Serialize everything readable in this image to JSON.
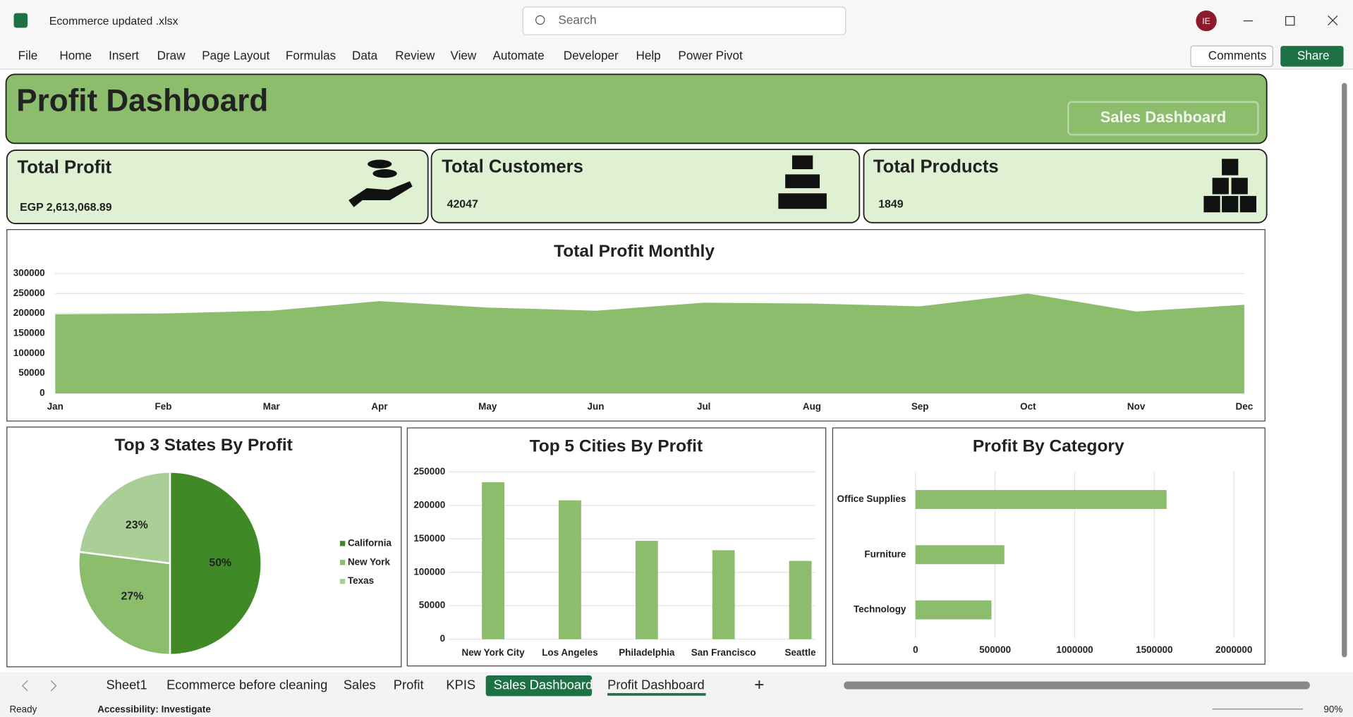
{
  "ui": {
    "file_name": "Ecommerce updated .xlsx",
    "search": "Search",
    "avatar": "IE",
    "menu": [
      "File",
      "Home",
      "Insert",
      "Draw",
      "Page Layout",
      "Formulas",
      "Data",
      "Review",
      "View",
      "Automate",
      "Developer",
      "Help",
      "Power Pivot"
    ],
    "comments": "Comments",
    "share": "Share",
    "tabs": [
      "Sheet1",
      "Ecommerce before cleaning",
      "Sales",
      "Profit",
      "KPIS",
      "Sales Dashboard",
      "Profit Dashboard"
    ],
    "status": "Ready",
    "accessibility": "Accessibility: Investigate",
    "zoom": "90%"
  },
  "dashboard": {
    "title": "Profit Dashboard",
    "button": "Sales Dashboard",
    "cards": [
      {
        "title": "Total Profit",
        "value": "EGP 2,613,068.89"
      },
      {
        "title": "Total Customers",
        "value": "42047"
      },
      {
        "title": "Total Products",
        "value": "1849"
      }
    ]
  },
  "chart_data": [
    {
      "type": "area",
      "title": "Total Profit Monthly",
      "categories": [
        "Jan",
        "Feb",
        "Mar",
        "Apr",
        "May",
        "Jun",
        "Jul",
        "Aug",
        "Sep",
        "Oct",
        "Nov",
        "Dec"
      ],
      "values": [
        198000,
        200000,
        207000,
        231000,
        215000,
        207000,
        227000,
        225000,
        218000,
        250000,
        205000,
        222000
      ],
      "color": "#8cbd6c",
      "ylim": [
        0,
        300000
      ],
      "yticks": [
        0,
        50000,
        100000,
        150000,
        200000,
        250000,
        300000
      ],
      "grid": true
    },
    {
      "type": "pie",
      "title": "Top 3 States By Profit",
      "categories": [
        "California",
        "New York",
        "Texas"
      ],
      "values": [
        50,
        27,
        23
      ],
      "value_labels": [
        "50%",
        "27%",
        "23%"
      ],
      "colors": [
        "#3f8a26",
        "#8cbd6c",
        "#a9cf97"
      ],
      "legend": "right"
    },
    {
      "type": "bar",
      "title": "Top 5 Cities By Profit",
      "categories": [
        "New York City",
        "Los Angeles",
        "Philadelphia",
        "San Francisco",
        "Seattle"
      ],
      "values": [
        234500,
        207500,
        147000,
        133000,
        117000
      ],
      "color": "#8cbd6c",
      "ylim": [
        0,
        250000
      ],
      "yticks": [
        0,
        50000,
        100000,
        150000,
        200000,
        250000
      ],
      "grid": true
    },
    {
      "type": "barh",
      "title": "Profit By Category",
      "categories": [
        "Office Supplies",
        "Furniture",
        "Technology"
      ],
      "values": [
        1577000,
        558000,
        477000
      ],
      "color": "#8cbd6c",
      "xlim": [
        0,
        2000000
      ],
      "xticks": [
        0,
        500000,
        1000000,
        1500000,
        2000000
      ],
      "grid": true
    }
  ]
}
